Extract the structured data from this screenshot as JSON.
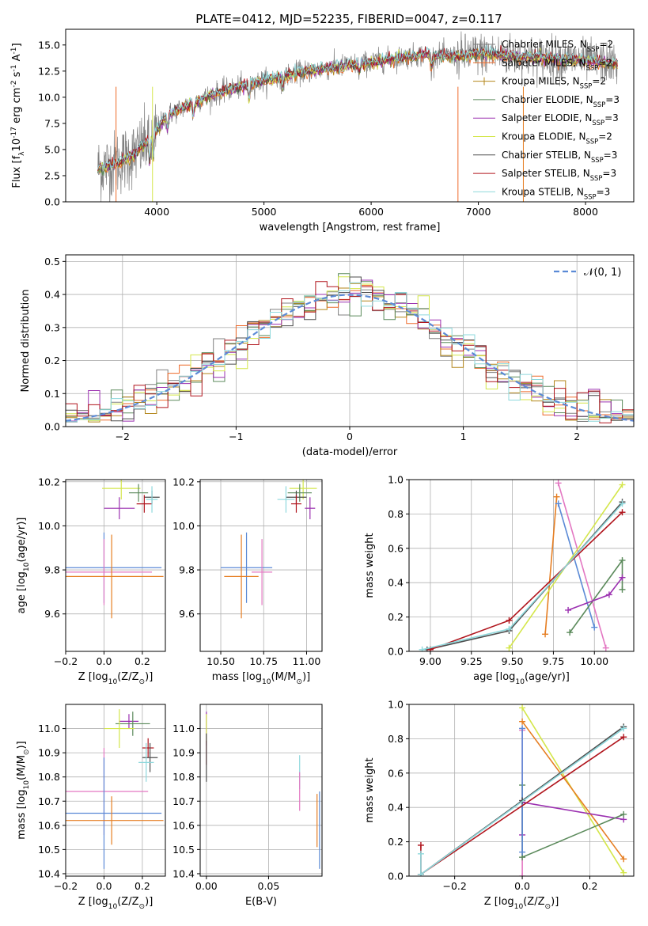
{
  "figure_title": "PLATE=0412, MJD=52235, FIBERID=0047, z=0.117",
  "colors": {
    "chabrier_miles": "#808080",
    "salpeter_miles": "#ee6a2a",
    "kroupa_miles": "#b3861a",
    "chabrier_elodie": "#5b8a5b",
    "salpeter_elodie": "#9b30b0",
    "kroupa_elodie": "#d4e64a",
    "chabrier_stelib": "#4d4d4d",
    "salpeter_stelib": "#b0141c",
    "kroupa_stelib": "#8ed8dc",
    "normal": "#5b8ad6",
    "pink": "#e377c2",
    "orange": "#e67e22",
    "blue": "#5b8ad6"
  },
  "chart_data": [
    {
      "type": "line",
      "title": "PLATE=0412, MJD=52235, FIBERID=0047, z=0.117",
      "xlabel": "wavelength [Angstrom, rest frame]",
      "ylabel": "Flux [f$_\\lambda$10$^{-17}$ erg cm$^{-2}$ s$^{-1}$ A$^{-1}$]",
      "xlim": [
        3150,
        8450
      ],
      "ylim": [
        0,
        16.5
      ],
      "xticks": [
        4000,
        5000,
        6000,
        7000,
        8000
      ],
      "yticks": [
        "0.0",
        "2.5",
        "5.0",
        "7.5",
        "10.0",
        "12.5",
        "15.0"
      ],
      "grid": false,
      "legend_position": "right",
      "legend": [
        {
          "label": "Chabrier MILES, N$_{SSP}$=2",
          "color_key": "chabrier_miles",
          "marker": "+"
        },
        {
          "label": "Salpeter MILES, N$_{SSP}$=2",
          "color_key": "salpeter_miles",
          "marker": "+"
        },
        {
          "label": "Kroupa MILES, N$_{SSP}$=2",
          "color_key": "kroupa_miles",
          "marker": "+"
        },
        {
          "label": "Chabrier ELODIE, N$_{SSP}$=3",
          "color_key": "chabrier_elodie",
          "marker": ""
        },
        {
          "label": "Salpeter ELODIE, N$_{SSP}$=3",
          "color_key": "salpeter_elodie",
          "marker": ""
        },
        {
          "label": "Kroupa ELODIE, N$_{SSP}$=2",
          "color_key": "kroupa_elodie",
          "marker": ""
        },
        {
          "label": "Chabrier STELIB, N$_{SSP}$=3",
          "color_key": "chabrier_stelib",
          "marker": ""
        },
        {
          "label": "Salpeter STELIB, N$_{SSP}$=3",
          "color_key": "salpeter_stelib",
          "marker": ""
        },
        {
          "label": "Kroupa STELIB, N$_{SSP}$=3",
          "color_key": "kroupa_stelib",
          "marker": ""
        }
      ],
      "continuum": [
        [
          3450,
          3.2
        ],
        [
          3600,
          3.6
        ],
        [
          3800,
          4.6
        ],
        [
          3950,
          6.2
        ],
        [
          4100,
          8.3
        ],
        [
          4300,
          9.3
        ],
        [
          4500,
          10.2
        ],
        [
          4700,
          10.8
        ],
        [
          5000,
          11.6
        ],
        [
          5300,
          12.3
        ],
        [
          5600,
          12.8
        ],
        [
          5900,
          13.2
        ],
        [
          6200,
          13.7
        ],
        [
          6500,
          14.1
        ],
        [
          6800,
          13.9
        ],
        [
          7000,
          14.2
        ],
        [
          7300,
          14.0
        ],
        [
          7600,
          13.8
        ],
        [
          7900,
          13.6
        ],
        [
          8200,
          13.3
        ],
        [
          8300,
          13.2
        ]
      ],
      "data_range": [
        3450,
        8300
      ],
      "model_range": [
        3450,
        8300
      ],
      "dips": [
        [
          3933,
          2.2
        ],
        [
          3968,
          2.0
        ],
        [
          4101,
          1.2
        ],
        [
          4340,
          1.3
        ],
        [
          4861,
          1.4
        ],
        [
          5175,
          1.0
        ],
        [
          5890,
          0.8
        ],
        [
          6563,
          1.2
        ]
      ]
    },
    {
      "type": "histogram",
      "xlabel": "(data-model)/error",
      "ylabel": "Normed distribution",
      "xlim": [
        -2.5,
        2.5
      ],
      "ylim": [
        0,
        0.52
      ],
      "xticks": [
        -2,
        -1,
        0,
        1,
        2
      ],
      "yticks": [
        "0.0",
        "0.1",
        "0.2",
        "0.3",
        "0.4",
        "0.5"
      ],
      "grid": true,
      "legend": [
        {
          "label": "$\\mathcal{N}(0,1)$",
          "style": "dashed",
          "color_key": "normal"
        }
      ],
      "legend_position": "top-right",
      "bin_width": 0.1,
      "series_keys": [
        "chabrier_miles",
        "salpeter_miles",
        "kroupa_miles",
        "chabrier_elodie",
        "salpeter_elodie",
        "kroupa_elodie",
        "chabrier_stelib",
        "salpeter_stelib",
        "kroupa_stelib"
      ],
      "gauss_sigma": 1.0,
      "gauss_peak": 0.399
    },
    {
      "type": "scatter",
      "xlabel": "Z [log$_{10}$(Z/Z$_\\odot$)]",
      "ylabel": "age  [log$_{10}$(age/yr)]",
      "xlim": [
        -0.2,
        0.32
      ],
      "ylim": [
        9.43,
        10.21
      ],
      "xticks": [
        "-0.2",
        "0.0",
        "0.2"
      ],
      "yticks": [
        "9.6",
        "9.8",
        "10.0",
        "10.2"
      ],
      "grid": true,
      "errorbars": [
        {
          "color_key": "kroupa_elodie",
          "x": 0.09,
          "xerr": 0.1,
          "y": 10.17,
          "yerr": 0.05
        },
        {
          "color_key": "chabrier_elodie",
          "x": 0.18,
          "xerr": 0.05,
          "y": 10.15,
          "yerr": 0.04
        },
        {
          "color_key": "chabrier_stelib",
          "x": 0.25,
          "xerr": 0.04,
          "y": 10.13,
          "yerr": 0.03
        },
        {
          "color_key": "salpeter_elodie",
          "x": 0.08,
          "xerr": 0.08,
          "y": 10.08,
          "yerr": 0.05
        },
        {
          "color_key": "salpeter_stelib",
          "x": 0.21,
          "xerr": 0.04,
          "y": 10.1,
          "yerr": 0.04
        },
        {
          "color_key": "kroupa_stelib",
          "x": 0.25,
          "xerr": 0.03,
          "y": 10.12,
          "yerr": 0.06
        },
        {
          "color_key": "blue",
          "x": 0.0,
          "xerr": 0.3,
          "y": 9.81,
          "yerr": 0.16
        },
        {
          "color_key": "pink",
          "x": 0.0,
          "xerr": 0.25,
          "y": 9.79,
          "yerr": 0.15
        },
        {
          "color_key": "orange",
          "x": 0.04,
          "xerr": 0.27,
          "y": 9.77,
          "yerr": 0.19
        }
      ]
    },
    {
      "type": "scatter",
      "xlabel": "mass [log$_{10}$(M/M$_\\odot$)]",
      "ylabel": "",
      "xlim": [
        10.38,
        11.09
      ],
      "ylim": [
        9.43,
        10.21
      ],
      "xticks": [
        "10.50",
        "10.75",
        "11.00"
      ],
      "yticks": [
        "9.6",
        "9.8",
        "10.0",
        "10.2"
      ],
      "grid": true,
      "errorbars": [
        {
          "color_key": "kroupa_elodie",
          "x": 10.98,
          "xerr": 0.08,
          "y": 10.17,
          "yerr": 0.05
        },
        {
          "color_key": "chabrier_elodie",
          "x": 10.96,
          "xerr": 0.07,
          "y": 10.15,
          "yerr": 0.04
        },
        {
          "color_key": "chabrier_stelib",
          "x": 10.94,
          "xerr": 0.06,
          "y": 10.13,
          "yerr": 0.03
        },
        {
          "color_key": "salpeter_elodie",
          "x": 11.02,
          "xerr": 0.03,
          "y": 10.08,
          "yerr": 0.05
        },
        {
          "color_key": "salpeter_stelib",
          "x": 10.94,
          "xerr": 0.03,
          "y": 10.1,
          "yerr": 0.04
        },
        {
          "color_key": "kroupa_stelib",
          "x": 10.88,
          "xerr": 0.05,
          "y": 10.12,
          "yerr": 0.06
        },
        {
          "color_key": "blue",
          "x": 10.65,
          "xerr": 0.15,
          "y": 9.81,
          "yerr": 0.16
        },
        {
          "color_key": "pink",
          "x": 10.74,
          "xerr": 0.06,
          "y": 9.79,
          "yerr": 0.15
        },
        {
          "color_key": "orange",
          "x": 10.62,
          "xerr": 0.1,
          "y": 9.77,
          "yerr": 0.19
        }
      ]
    },
    {
      "type": "line",
      "xlabel": "age  [log$_{10}$(age/yr)]",
      "ylabel": "mass weight",
      "xlim": [
        8.87,
        10.24
      ],
      "ylim": [
        0,
        1.0
      ],
      "xticks": [
        "9.00",
        "9.25",
        "9.50",
        "9.75",
        "10.00"
      ],
      "yticks": [
        "0.0",
        "0.2",
        "0.4",
        "0.6",
        "0.8",
        "1.0"
      ],
      "grid": true,
      "series": [
        {
          "color_key": "pink",
          "x": [
            9.78,
            10.07
          ],
          "y": [
            0.98,
            0.02
          ]
        },
        {
          "color_key": "orange",
          "x": [
            9.7,
            9.77
          ],
          "y": [
            0.1,
            0.9
          ]
        },
        {
          "color_key": "blue",
          "x": [
            9.78,
            10.0
          ],
          "y": [
            0.86,
            0.14
          ]
        },
        {
          "color_key": "kroupa_elodie",
          "x": [
            9.48,
            10.17
          ],
          "y": [
            0.02,
            0.97
          ]
        },
        {
          "color_key": "chabrier_elodie",
          "x": [
            9.85,
            10.17,
            10.17
          ],
          "y": [
            0.11,
            0.53,
            0.36
          ]
        },
        {
          "color_key": "salpeter_elodie",
          "x": [
            9.84,
            10.09,
            10.17
          ],
          "y": [
            0.24,
            0.33,
            0.43
          ]
        },
        {
          "color_key": "chabrier_stelib",
          "x": [
            8.98,
            9.48,
            10.17
          ],
          "y": [
            0.01,
            0.12,
            0.87
          ]
        },
        {
          "color_key": "salpeter_stelib",
          "x": [
            9.0,
            9.48,
            10.17
          ],
          "y": [
            0.01,
            0.18,
            0.81
          ]
        },
        {
          "color_key": "kroupa_stelib",
          "x": [
            8.95,
            9.48,
            10.17
          ],
          "y": [
            0.01,
            0.13,
            0.86
          ]
        }
      ]
    },
    {
      "type": "scatter",
      "xlabel": "Z [log$_{10}$(Z/Z$_\\odot$)]",
      "ylabel": "mass [log$_{10}$(M/M$_\\odot$)]",
      "xlim": [
        -0.2,
        0.32
      ],
      "ylim": [
        10.39,
        11.1
      ],
      "xticks": [
        "-0.2",
        "0.0",
        "0.2"
      ],
      "yticks": [
        "10.4",
        "10.5",
        "10.6",
        "10.7",
        "10.8",
        "10.9",
        "11.0"
      ],
      "grid": true,
      "errorbars": [
        {
          "color_key": "salpeter_elodie",
          "x": 0.13,
          "xerr": 0.05,
          "y": 11.03,
          "yerr": 0.03
        },
        {
          "color_key": "chabrier_elodie",
          "x": 0.15,
          "xerr": 0.09,
          "y": 11.02,
          "yerr": 0.05
        },
        {
          "color_key": "kroupa_elodie",
          "x": 0.08,
          "xerr": 0.08,
          "y": 11.0,
          "yerr": 0.08
        },
        {
          "color_key": "salpeter_stelib",
          "x": 0.23,
          "xerr": 0.03,
          "y": 10.92,
          "yerr": 0.04
        },
        {
          "color_key": "chabrier_stelib",
          "x": 0.24,
          "xerr": 0.04,
          "y": 10.88,
          "yerr": 0.06
        },
        {
          "color_key": "kroupa_stelib",
          "x": 0.22,
          "xerr": 0.04,
          "y": 10.86,
          "yerr": 0.08
        },
        {
          "color_key": "pink",
          "x": 0.0,
          "xerr": 0.23,
          "y": 10.74,
          "yerr": 0.18
        },
        {
          "color_key": "blue",
          "x": 0.0,
          "xerr": 0.3,
          "y": 10.65,
          "yerr": 0.23
        },
        {
          "color_key": "orange",
          "x": 0.04,
          "xerr": 0.27,
          "y": 10.62,
          "yerr": 0.1
        }
      ]
    },
    {
      "type": "scatter",
      "xlabel": "E(B-V)",
      "ylabel": "",
      "xlim": [
        -0.005,
        0.093
      ],
      "ylim": [
        10.39,
        11.1
      ],
      "xticks": [
        "0.00",
        "0.05"
      ],
      "yticks": [
        "10.4",
        "10.5",
        "10.6",
        "10.7",
        "10.8",
        "10.9",
        "11.0"
      ],
      "grid": true,
      "errorbars": [
        {
          "color_key": "salpeter_elodie",
          "x": 0.0,
          "xerr": 0,
          "y": 11.0,
          "yerr": 0.07
        },
        {
          "color_key": "kroupa_elodie",
          "x": 0.0,
          "xerr": 0,
          "y": 11.0,
          "yerr": 0.06
        },
        {
          "color_key": "salpeter_stelib",
          "x": 0.0,
          "xerr": 0,
          "y": 10.9,
          "yerr": 0.05
        },
        {
          "color_key": "chabrier_stelib",
          "x": 0.0,
          "xerr": 0,
          "y": 10.88,
          "yerr": 0.1
        },
        {
          "color_key": "kroupa_stelib",
          "x": 0.075,
          "xerr": 0,
          "y": 10.82,
          "yerr": 0.07
        },
        {
          "color_key": "pink",
          "x": 0.075,
          "xerr": 0,
          "y": 10.74,
          "yerr": 0.08
        },
        {
          "color_key": "orange",
          "x": 0.089,
          "xerr": 0,
          "y": 10.62,
          "yerr": 0.11
        },
        {
          "color_key": "blue",
          "x": 0.091,
          "xerr": 0,
          "y": 10.58,
          "yerr": 0.16
        }
      ]
    },
    {
      "type": "line",
      "xlabel": "Z [log$_{10}$(Z/Z$_\\odot$)]",
      "ylabel": "mass weight",
      "xlim": [
        -0.335,
        0.33
      ],
      "ylim": [
        0,
        1.0
      ],
      "xticks": [
        "-0.2",
        "0.0",
        "0.2"
      ],
      "yticks": [
        "0.0",
        "0.2",
        "0.4",
        "0.6",
        "0.8",
        "1.0"
      ],
      "grid": true,
      "series": [
        {
          "color_key": "kroupa_elodie",
          "x": [
            0.0,
            0.3
          ],
          "y": [
            0.98,
            0.02
          ]
        },
        {
          "color_key": "orange",
          "x": [
            0.0,
            0.3
          ],
          "y": [
            0.9,
            0.1
          ]
        },
        {
          "color_key": "pink",
          "x": [
            0.0,
            0.0
          ],
          "y": [
            0.85,
            0.0
          ]
        },
        {
          "color_key": "salpeter_elodie",
          "x": [
            0.0,
            0.0,
            0.3
          ],
          "y": [
            0.24,
            0.43,
            0.33
          ]
        },
        {
          "color_key": "chabrier_elodie",
          "x": [
            0.0,
            0.0,
            0.3
          ],
          "y": [
            0.53,
            0.11,
            0.36
          ]
        },
        {
          "color_key": "blue",
          "x": [
            0.0,
            0.0
          ],
          "y": [
            0.14,
            0.86
          ]
        },
        {
          "color_key": "chabrier_stelib",
          "x": [
            -0.3,
            0.0,
            0.3
          ],
          "y": [
            0.01,
            0.44,
            0.87
          ]
        },
        {
          "color_key": "salpeter_stelib",
          "x": [
            -0.3,
            -0.3,
            0.3
          ],
          "y": [
            0.18,
            0.01,
            0.81
          ]
        },
        {
          "color_key": "kroupa_stelib",
          "x": [
            -0.3,
            -0.3,
            0.3
          ],
          "y": [
            0.13,
            0.01,
            0.86
          ]
        }
      ]
    }
  ]
}
